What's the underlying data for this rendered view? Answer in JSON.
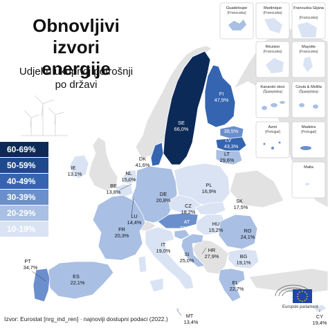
{
  "title": [
    "Obnovljivi izvori",
    "energije"
  ],
  "subtitle": [
    "Udjel u ukupnoj potrošnji",
    "po državi"
  ],
  "source": "Izvor: Eurostat [nrg_ind_ren]  ·  najnoviji dostupni podaci (2022.)",
  "logo_text": "Europski parlament",
  "colors": {
    "bin_60_69": "#0c2a57",
    "bin_50_59": "#1e4a8d",
    "bin_40_49": "#3565b0",
    "bin_30_39": "#6b8fcc",
    "bin_20_29": "#a9bfe3",
    "bin_10_19": "#d9e3f3",
    "non_eu": "#e2e2e2",
    "sea": "#ffffff"
  },
  "legend": [
    {
      "label": "60-69%",
      "color": "#0c2a57",
      "text_color": "#ffffff"
    },
    {
      "label": "50-59%",
      "color": "#1e4a8d",
      "text_color": "#ffffff"
    },
    {
      "label": "40-49%",
      "color": "#3565b0",
      "text_color": "#ffffff"
    },
    {
      "label": "30-39%",
      "color": "#6b8fcc",
      "text_color": "#ffffff"
    },
    {
      "label": "20-29%",
      "color": "#a9bfe3",
      "text_color": "#ffffff"
    },
    {
      "label": "10-19%",
      "color": "#d9e3f3",
      "text_color": "#ffffff"
    }
  ],
  "countries": [
    {
      "code": "SE",
      "value": "66,0%"
    },
    {
      "code": "FI",
      "value": "47,9%"
    },
    {
      "code": "EE",
      "value": "38,5%"
    },
    {
      "code": "LV",
      "value": "43,3%"
    },
    {
      "code": "LT",
      "value": "29,6%"
    },
    {
      "code": "DK",
      "value": "41,6%"
    },
    {
      "code": "IE",
      "value": "13,1%"
    },
    {
      "code": "NL",
      "value": "15,0%"
    },
    {
      "code": "BE",
      "value": "13,8%"
    },
    {
      "code": "DE",
      "value": "20,8%"
    },
    {
      "code": "PL",
      "value": "16,9%"
    },
    {
      "code": "LU",
      "value": "14,4%"
    },
    {
      "code": "CZ",
      "value": "18,2%"
    },
    {
      "code": "SK",
      "value": "17,5%"
    },
    {
      "code": "FR",
      "value": "20,3%"
    },
    {
      "code": "AT",
      "value": "33,8%"
    },
    {
      "code": "HU",
      "value": "15,2%"
    },
    {
      "code": "RO",
      "value": "24,1%"
    },
    {
      "code": "SI",
      "value": "25,0%"
    },
    {
      "code": "HR",
      "value": "27,9%"
    },
    {
      "code": "IT",
      "value": "19,0%"
    },
    {
      "code": "BG",
      "value": "19,1%"
    },
    {
      "code": "PT",
      "value": "34,7%"
    },
    {
      "code": "ES",
      "value": "22,1%"
    },
    {
      "code": "EL",
      "value": "22,7%"
    },
    {
      "code": "MT",
      "value": "13,4%"
    },
    {
      "code": "CY",
      "value": "19,4%"
    }
  ],
  "insets": [
    {
      "name": "Guadeloupe",
      "sub": "(Francuska)"
    },
    {
      "name": "Martinique",
      "sub": "(Francuska)"
    },
    {
      "name": "Francuska Gijana",
      "sub": "(Francuska)"
    },
    {
      "name": "Réunion",
      "sub": "(Francuska)"
    },
    {
      "name": "Mayotte",
      "sub": "(Francuska)"
    },
    {
      "name": "Kanarski otoci",
      "sub": "(Španjolska)"
    },
    {
      "name": "Ceuta & Melilla",
      "sub": "(Španjolska)"
    },
    {
      "name": "Azori",
      "sub": "(Portugal)"
    },
    {
      "name": "Madeira",
      "sub": "(Portugal)"
    },
    {
      "name": "Malta",
      "sub": ""
    }
  ]
}
